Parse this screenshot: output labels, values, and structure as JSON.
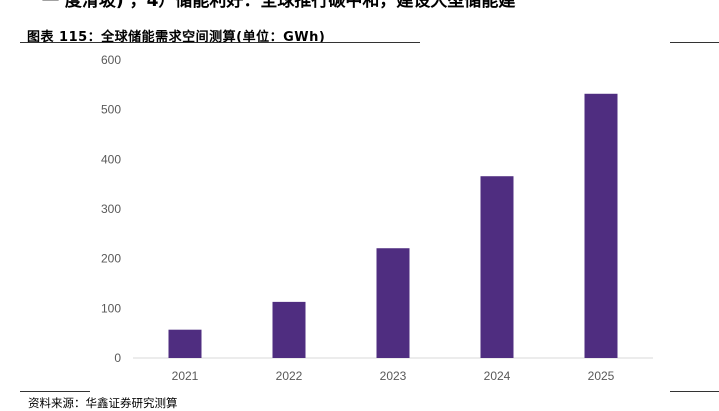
{
  "header": {
    "cut_text": "一 度滑坡) ，4）储能利好：全球推行碳中和，建设大型储能建"
  },
  "figure": {
    "title": "图表 115：全球储能需求空间测算(单位：GWh)",
    "source": "资料来源：华鑫证券研究测算"
  },
  "chart_data": {
    "type": "bar",
    "categories": [
      "2021",
      "2022",
      "2023",
      "2024",
      "2025"
    ],
    "values": [
      57,
      113,
      221,
      366,
      532
    ],
    "ylim": [
      0,
      600
    ],
    "yticks": [
      0,
      100,
      200,
      300,
      400,
      500,
      600
    ],
    "bar_color": "#4f2d80",
    "grid": false,
    "legend": "none"
  }
}
